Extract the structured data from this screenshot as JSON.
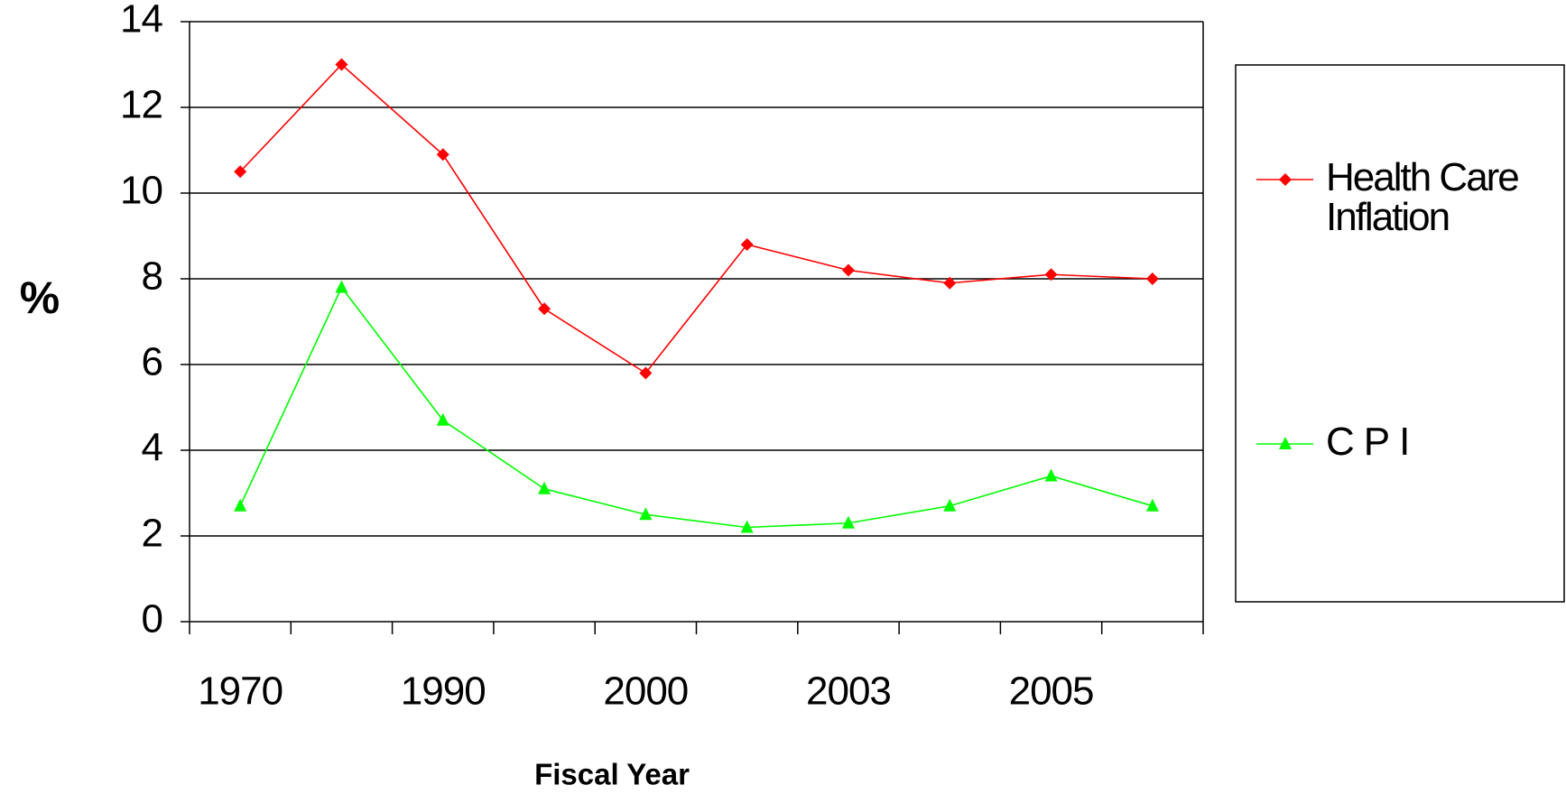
{
  "chart_data": {
    "type": "line",
    "categories": [
      "1970",
      null,
      "1990",
      null,
      "2000",
      null,
      "2003",
      null,
      "2005",
      null
    ],
    "series": [
      {
        "name": "Health Care Inflation",
        "color": "#ff0000",
        "marker": "diamond",
        "values": [
          10.5,
          13,
          10.9,
          7.3,
          5.8,
          8.8,
          8.2,
          7.9,
          8.1,
          8.0
        ]
      },
      {
        "name": "CPI",
        "color": "#00ff00",
        "marker": "triangle",
        "values": [
          2.7,
          7.8,
          4.7,
          3.1,
          2.5,
          2.2,
          2.3,
          2.7,
          3.4,
          2.7
        ]
      }
    ],
    "xlabel": "Fiscal Year",
    "ylabel": "%",
    "ylim": [
      0,
      14
    ],
    "yticks": [
      0,
      2,
      4,
      6,
      8,
      10,
      12,
      14
    ],
    "grid": true,
    "legend": "right"
  }
}
